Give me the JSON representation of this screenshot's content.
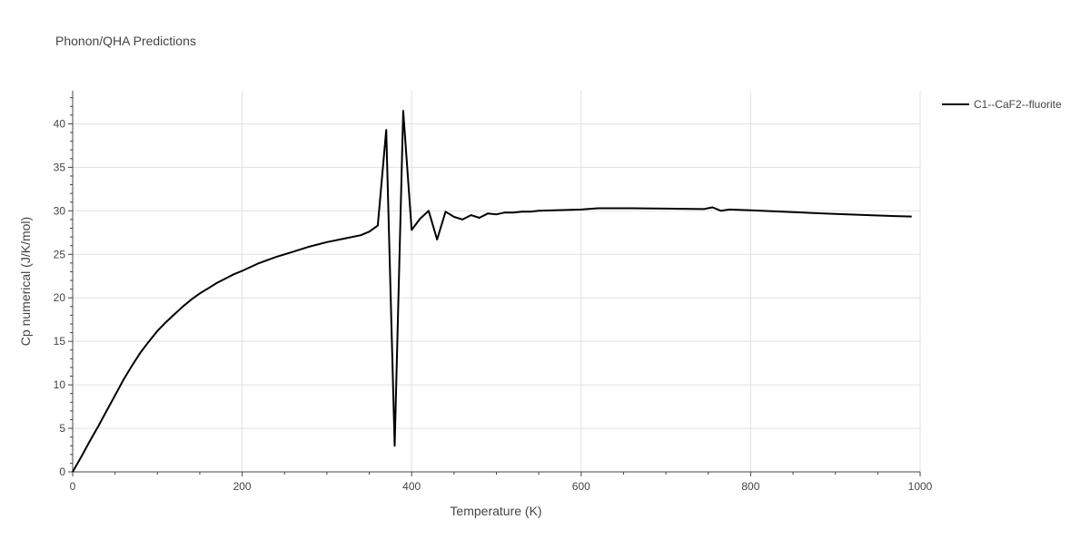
{
  "chart_data": {
    "type": "line",
    "title": "Phonon/QHA Predictions",
    "xlabel": "Temperature (K)",
    "ylabel": "Cp numerical (J/K/mol)",
    "xlim": [
      0,
      1000
    ],
    "ylim": [
      0,
      43.8
    ],
    "xticks": [
      0,
      200,
      400,
      600,
      800,
      1000
    ],
    "yticks": [
      0,
      5,
      10,
      15,
      20,
      25,
      30,
      35,
      40
    ],
    "grid": true,
    "legend_position": "top-right",
    "series": [
      {
        "name": "C1--CaF2--fluorite",
        "color": "#000000",
        "x": [
          0,
          10,
          20,
          30,
          40,
          50,
          60,
          70,
          80,
          90,
          100,
          110,
          120,
          130,
          140,
          150,
          160,
          170,
          180,
          190,
          200,
          220,
          240,
          260,
          280,
          300,
          320,
          340,
          350,
          360,
          370,
          380,
          390,
          400,
          410,
          420,
          430,
          440,
          450,
          460,
          470,
          480,
          490,
          500,
          510,
          520,
          530,
          540,
          550,
          600,
          620,
          660,
          700,
          745,
          755,
          765,
          775,
          800,
          850,
          900,
          940,
          970,
          990
        ],
        "y": [
          0,
          1.7,
          3.5,
          5.2,
          7.0,
          8.8,
          10.6,
          12.2,
          13.7,
          15.0,
          16.2,
          17.2,
          18.1,
          19.0,
          19.8,
          20.5,
          21.1,
          21.7,
          22.2,
          22.7,
          23.1,
          24.0,
          24.7,
          25.3,
          25.9,
          26.4,
          26.8,
          27.2,
          27.6,
          28.3,
          39.3,
          3.0,
          41.5,
          27.8,
          29.1,
          30.0,
          26.7,
          29.9,
          29.3,
          29.0,
          29.5,
          29.2,
          29.7,
          29.6,
          29.8,
          29.8,
          29.9,
          29.9,
          30.0,
          30.15,
          30.3,
          30.3,
          30.25,
          30.2,
          30.4,
          30.0,
          30.15,
          30.05,
          29.85,
          29.65,
          29.5,
          29.4,
          29.35
        ]
      }
    ]
  }
}
